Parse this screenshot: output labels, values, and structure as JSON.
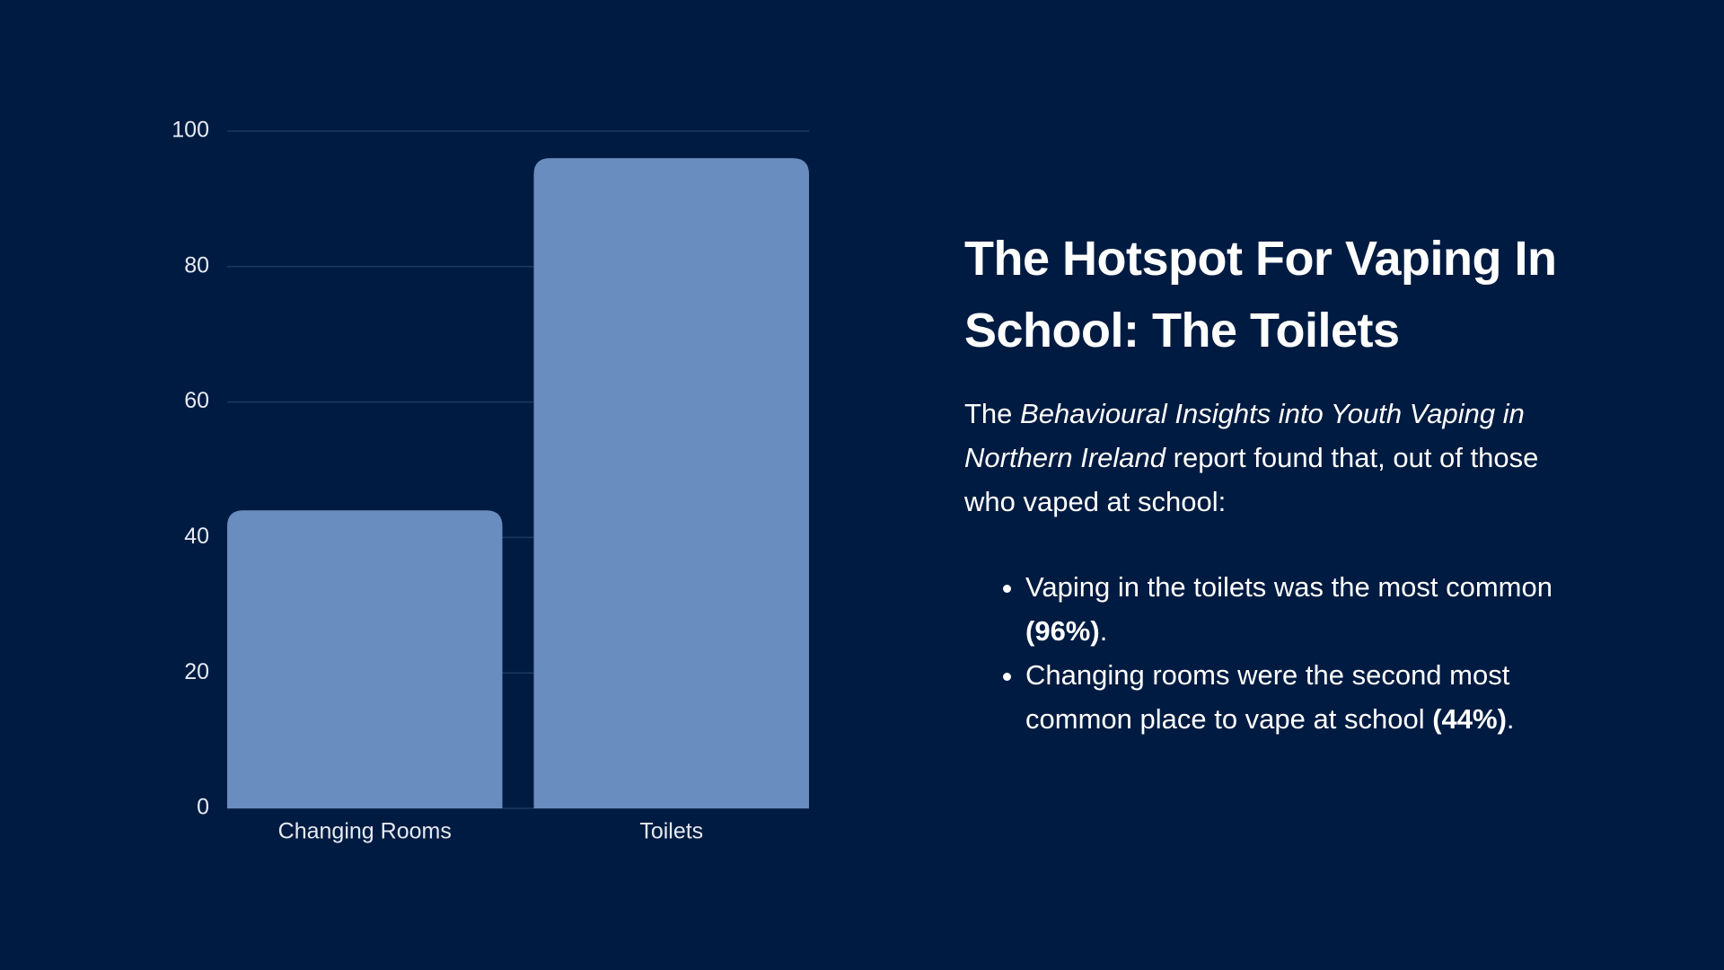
{
  "chart_data": {
    "type": "bar",
    "categories": [
      "Changing Rooms",
      "Toilets"
    ],
    "values": [
      44,
      96
    ],
    "color": "#6a8dbf",
    "ylim": [
      0,
      100
    ],
    "yticks": [
      0,
      20,
      40,
      60,
      80,
      100
    ],
    "grid": true,
    "grid_color": "#1e3760"
  },
  "heading": "The Hotspot For Vaping In School: The Toilets",
  "intro": [
    "The ",
    "Behavioural Insights into Youth Vaping in Northern Ireland",
    " report found that, out of those who vaped at school:"
  ],
  "bullets": [
    [
      "Vaping in the toilets was the most common ",
      "(96%)",
      "."
    ],
    [
      "Changing rooms were the second most common place to vape at school ",
      "(44%)",
      "."
    ]
  ]
}
